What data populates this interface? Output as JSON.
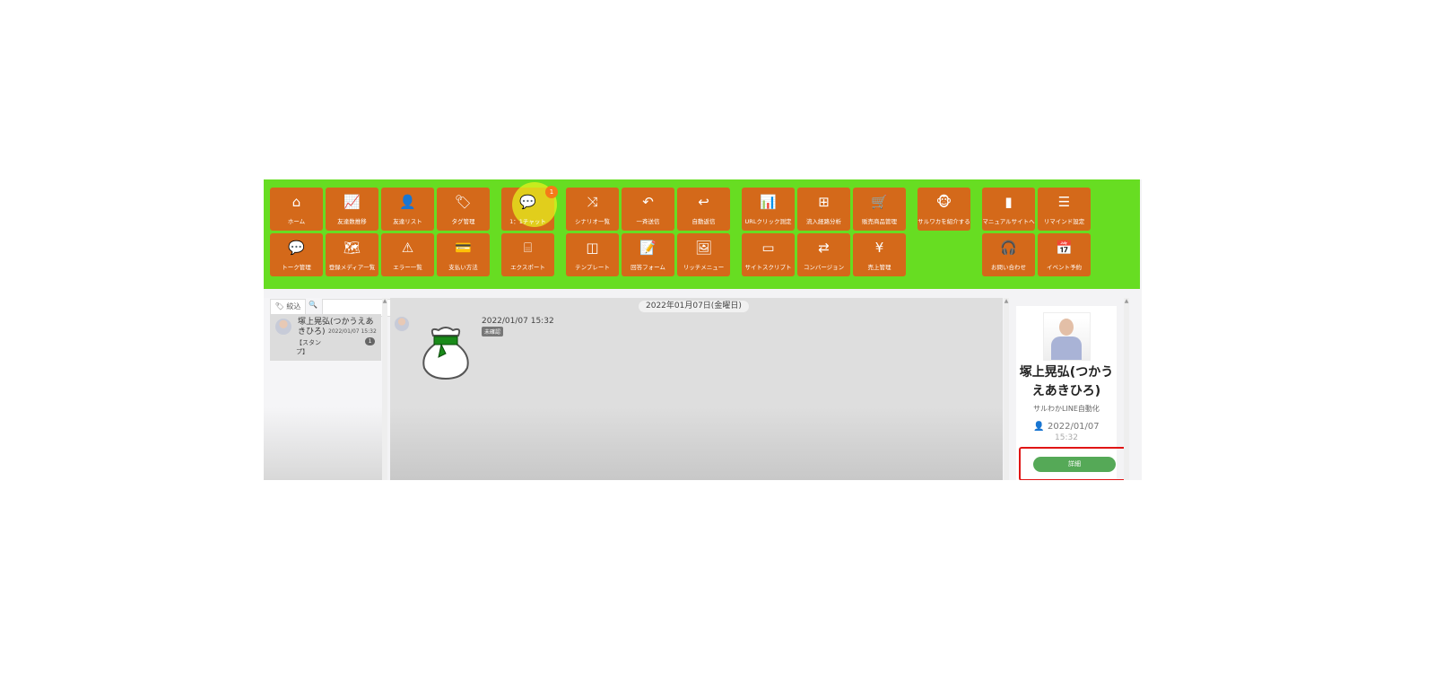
{
  "toolbar": {
    "tiles": [
      {
        "label": "ホーム",
        "icon": "home-icon",
        "glyph": "⌂"
      },
      {
        "label": "友達数推移",
        "icon": "line-chart-icon",
        "glyph": "📈"
      },
      {
        "label": "友達リスト",
        "icon": "user-icon",
        "glyph": "👤"
      },
      {
        "label": "タグ管理",
        "icon": "tags-icon",
        "glyph": "🏷"
      },
      {
        "label": "1：1チャット",
        "icon": "chat-icon",
        "glyph": "💬",
        "badge": "1"
      },
      {
        "label": "シナリオ一覧",
        "icon": "shuffle-icon",
        "glyph": "⤨"
      },
      {
        "label": "一斉送信",
        "icon": "reply-icon",
        "glyph": "↶"
      },
      {
        "label": "自動返信",
        "icon": "undo-icon",
        "glyph": "↩"
      },
      {
        "label": "URLクリック測定",
        "icon": "bar-search-icon",
        "glyph": "📊"
      },
      {
        "label": "流入経路分析",
        "icon": "sitemap-icon",
        "glyph": "⊞"
      },
      {
        "label": "販売商品管理",
        "icon": "cart-icon",
        "glyph": "🛒"
      },
      {
        "label": "サルワカを紹介する",
        "icon": "monkey-icon",
        "glyph": "🐵"
      },
      {
        "label": "マニュアルサイトへ",
        "icon": "book-icon",
        "glyph": "▮"
      },
      {
        "label": "リマインド設定",
        "icon": "list-icon",
        "glyph": "☰"
      },
      {
        "label": "トーク管理",
        "icon": "comment-icon",
        "glyph": "💬"
      },
      {
        "label": "登録メディア一覧",
        "icon": "map-icon",
        "glyph": "🗺"
      },
      {
        "label": "エラー一覧",
        "icon": "warning-icon",
        "glyph": "⚠"
      },
      {
        "label": "支払い方法",
        "icon": "card-icon",
        "glyph": "💳"
      },
      {
        "label": "エクスポート",
        "icon": "drive-icon",
        "glyph": "⌸"
      },
      {
        "label": "テンプレート",
        "icon": "columns-icon",
        "glyph": "◫"
      },
      {
        "label": "回答フォーム",
        "icon": "clipboard-edit-icon",
        "glyph": "📝"
      },
      {
        "label": "リッチメニュー",
        "icon": "image-icon",
        "glyph": "🖼"
      },
      {
        "label": "サイトスクリプト",
        "icon": "browser-icon",
        "glyph": "▭"
      },
      {
        "label": "コンバージョン",
        "icon": "exchange-icon",
        "glyph": "⇄"
      },
      {
        "label": "売上管理",
        "icon": "money-bag-icon",
        "glyph": "¥"
      },
      {
        "label": "お問い合わせ",
        "icon": "headset-icon",
        "glyph": "🎧"
      },
      {
        "label": "イベント予約",
        "icon": "calendar-icon",
        "glyph": "📅"
      }
    ]
  },
  "sidebar": {
    "filter_label": "絞込",
    "search_placeholder": "",
    "conversations": [
      {
        "name": "塚上晃弘(つかうえあきひろ)",
        "time": "2022/01/07 15:32",
        "preview": "【スタンプ】",
        "unread": "1"
      }
    ]
  },
  "chat": {
    "date": "2022年01月07日(金曜日)",
    "message": {
      "time": "2022/01/07 15:32",
      "status": "未確認",
      "type": "sticker"
    }
  },
  "profile": {
    "name": "塚上晃弘(つかうえあきひろ)",
    "account": "サルわかLINE自動化",
    "date": "2022/01/07",
    "time": "15:32",
    "detail_label": "詳細"
  },
  "colors": {
    "topbar": "#67dd22",
    "tile": "#d4691a",
    "detail": "#55a957",
    "highlight": "#e01515"
  }
}
